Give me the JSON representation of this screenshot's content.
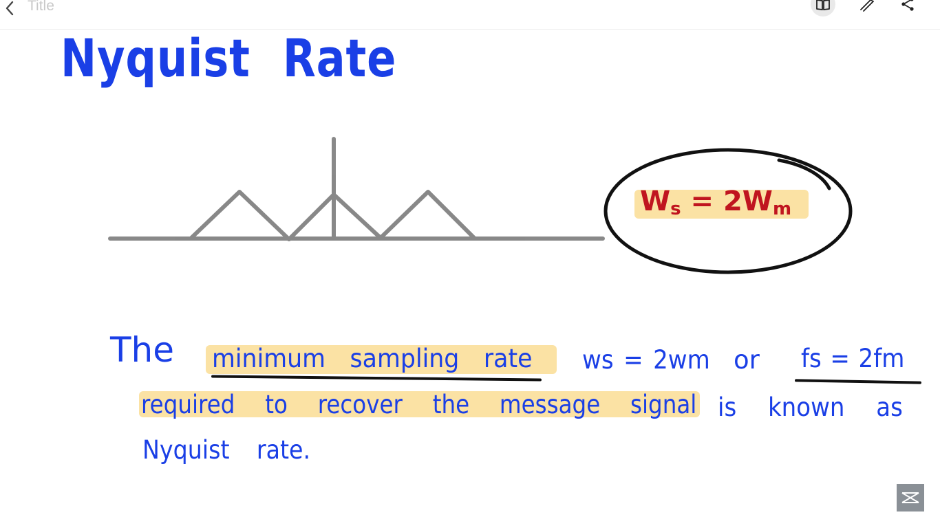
{
  "topbar": {
    "title": "Title",
    "back_icon": "chevron-left-icon",
    "tools": [
      "book-icon",
      "pencil-icon",
      "share-icon"
    ]
  },
  "note": {
    "heading": "Nyquist Rate",
    "formula": {
      "main": "ws = 2wm",
      "lhs": "W",
      "lhs_sub": "s",
      "eq": " = 2W",
      "rhs_sub": "m"
    },
    "sentence": {
      "the": "The",
      "highlight1": "minimum sampling rate",
      "ws_eq": "ws = 2wm",
      "or": "or",
      "fs_eq": "fs = 2fm",
      "highlight2": "required to recover the message signal",
      "rest": "is known as",
      "line3": "Nyquist rate."
    }
  },
  "colors": {
    "ink_blue": "#1a3fe6",
    "ink_red": "#c0151f",
    "highlight": "#fbe2a4",
    "graph_gray": "#7c7c7c"
  }
}
